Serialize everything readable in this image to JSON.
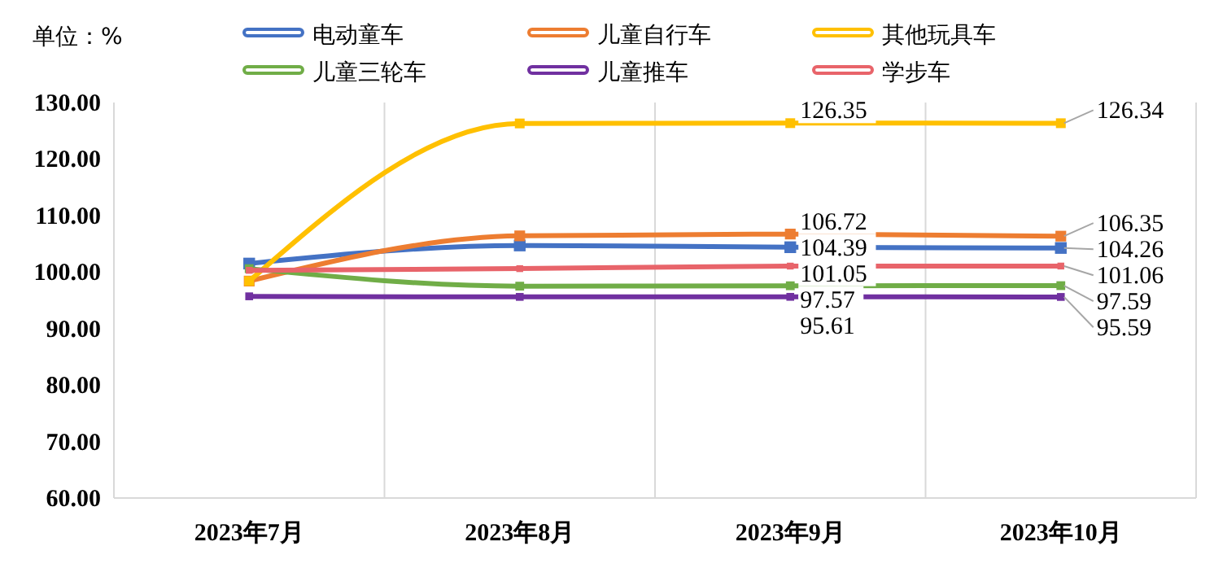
{
  "chart_data": {
    "type": "line",
    "ylabel": "单位：%",
    "categories": [
      "2023年7月",
      "2023年8月",
      "2023年9月",
      "2023年10月"
    ],
    "series": [
      {
        "name": "电动童车",
        "color": "#4472c4",
        "values": [
          101.5,
          104.7,
          104.39,
          104.26
        ],
        "value_labels": [
          null,
          null,
          "104.39",
          "104.26"
        ]
      },
      {
        "name": "儿童自行车",
        "color": "#ed7d31",
        "values": [
          98.4,
          106.4,
          106.72,
          106.35
        ],
        "value_labels": [
          null,
          null,
          "106.72",
          "106.35"
        ]
      },
      {
        "name": "其他玩具车",
        "color": "#ffc000",
        "values": [
          98.4,
          126.3,
          126.35,
          126.34
        ],
        "value_labels": [
          null,
          null,
          "126.35",
          "126.34"
        ]
      },
      {
        "name": "儿童三轮车",
        "color": "#70ad47",
        "values": [
          100.6,
          97.5,
          97.57,
          97.59
        ],
        "value_labels": [
          null,
          null,
          "97.57",
          "97.59"
        ]
      },
      {
        "name": "儿童推车",
        "color": "#7030a0",
        "values": [
          95.7,
          95.6,
          95.61,
          95.59
        ],
        "value_labels": [
          null,
          null,
          "95.61",
          "95.59"
        ]
      },
      {
        "name": "学步车",
        "color": "#e8646a",
        "values": [
          100.3,
          100.6,
          101.05,
          101.06
        ],
        "value_labels": [
          null,
          null,
          "101.05",
          "101.06"
        ]
      }
    ],
    "ylim": [
      60,
      130
    ],
    "yticks": [
      {
        "value": 60,
        "label": "60.00"
      },
      {
        "value": 70,
        "label": "70.00"
      },
      {
        "value": 80,
        "label": "80.00"
      },
      {
        "value": 90,
        "label": "90.00"
      },
      {
        "value": 100,
        "label": "100.00"
      },
      {
        "value": 110,
        "label": "110.00"
      },
      {
        "value": 120,
        "label": "120.00"
      },
      {
        "value": 130,
        "label": "130.00"
      }
    ],
    "grid": "x",
    "legend": "top",
    "marker": "square",
    "line_style": "solid"
  }
}
